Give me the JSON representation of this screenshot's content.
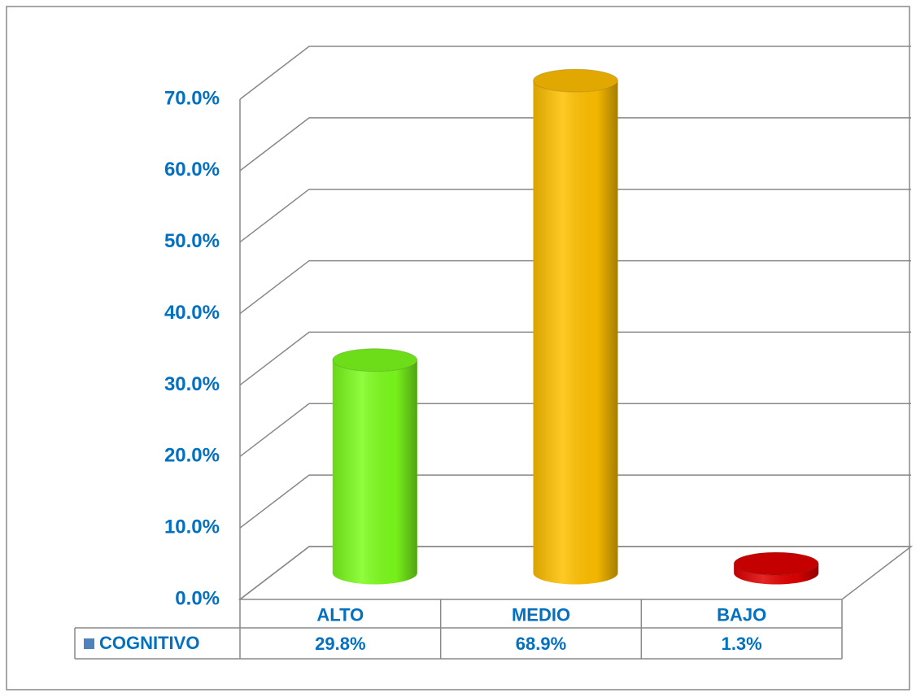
{
  "chart_data": {
    "type": "bar3d",
    "categories": [
      "ALTO",
      "MEDIO",
      "BAJO"
    ],
    "series": [
      {
        "name": "COGNITIVO",
        "color": "#4f81bd",
        "colors": [
          "#7cfc1c",
          "#ffc000",
          "#e00000"
        ],
        "values": [
          29.8,
          68.9,
          1.3
        ],
        "value_labels": [
          "29.8%",
          "68.9%",
          "1.3%"
        ]
      }
    ],
    "ylim": [
      0,
      70
    ],
    "yticks": [
      {
        "value": 0,
        "label": "0.0%"
      },
      {
        "value": 10,
        "label": "10.0%"
      },
      {
        "value": 20,
        "label": "20.0%"
      },
      {
        "value": 30,
        "label": "30.0%"
      },
      {
        "value": 40,
        "label": "40.0%"
      },
      {
        "value": 50,
        "label": "50.0%"
      },
      {
        "value": 60,
        "label": "60.0%"
      },
      {
        "value": 70,
        "label": "70.0%"
      }
    ],
    "grid": true,
    "legend": "table"
  }
}
